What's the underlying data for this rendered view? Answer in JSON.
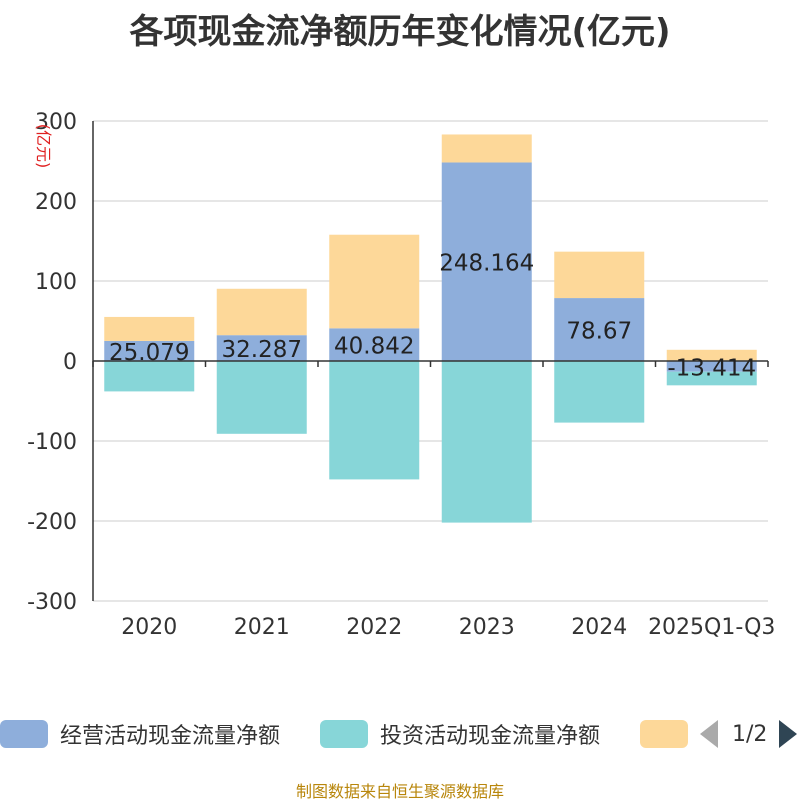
{
  "title": "各项现金流净额历年变化情况(亿元)",
  "footer": "制图数据来自恒生聚源数据库",
  "legend": {
    "items": [
      {
        "label": "经营活动现金流量净额",
        "color": "#8eaedb"
      },
      {
        "label": "投资活动现金流量净额",
        "color": "#87d6d8"
      },
      {
        "label": "",
        "color": "#fdd899"
      }
    ],
    "page": "1/2"
  },
  "chart_data": {
    "type": "bar",
    "stacked": true,
    "ylabel": "(亿元)",
    "ylim": [
      -300,
      300
    ],
    "yticks": [
      300,
      200,
      100,
      0,
      -100,
      -200,
      -300
    ],
    "categories": [
      "2020",
      "2021",
      "2022",
      "2023",
      "2024",
      "2025Q1-Q3"
    ],
    "series": [
      {
        "name": "经营活动现金流量净额",
        "color": "#8eaedb",
        "values": [
          25.079,
          32.287,
          40.842,
          248.164,
          78.67,
          -13.414
        ],
        "labels": [
          "25.079",
          "32.287",
          "40.842",
          "248.164",
          "78.67",
          "-13.414"
        ]
      },
      {
        "name": "投资活动现金流量净额",
        "color": "#87d6d8",
        "values": [
          -38,
          -91,
          -148,
          -202,
          -77,
          -17
        ]
      },
      {
        "color": "#fdd899",
        "values": [
          30,
          58,
          117,
          35,
          58,
          14
        ]
      }
    ],
    "grid": true
  }
}
